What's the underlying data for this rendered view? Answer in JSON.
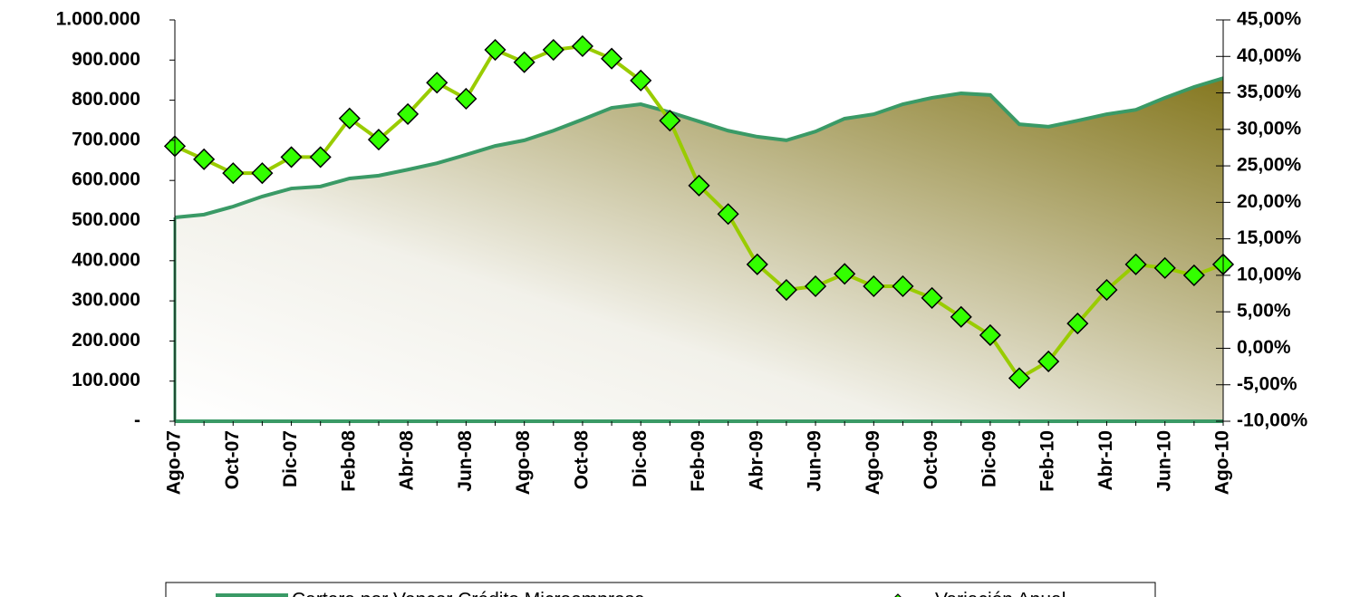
{
  "chart_data": {
    "type": "line",
    "categories": [
      "Ago-07",
      null,
      "Oct-07",
      null,
      "Dic-07",
      null,
      "Feb-08",
      null,
      "Abr-08",
      null,
      "Jun-08",
      null,
      "Ago-08",
      null,
      "Oct-08",
      null,
      "Dic-08",
      null,
      "Feb-09",
      null,
      "Abr-09",
      null,
      "Jun-09",
      null,
      "Ago-09",
      null,
      "Oct-09",
      null,
      "Dic-09",
      null,
      "Feb-10",
      null,
      "Abr-10",
      null,
      "Jun-10",
      null,
      "Ago-10"
    ],
    "series": [
      {
        "name": "Cartera por Vencer Crédito Microempresa",
        "type": "area",
        "color": "#3a9a66",
        "fill": "#857820",
        "values": [
          508000,
          515000,
          535000,
          560000,
          580000,
          585000,
          605000,
          612000,
          627000,
          643000,
          664000,
          686000,
          700000,
          724000,
          752000,
          781000,
          790000,
          770000,
          747000,
          724000,
          709000,
          700000,
          722000,
          754000,
          765000,
          790000,
          806000,
          817000,
          813000,
          740000,
          734000,
          749000,
          765000,
          776000,
          806000,
          833000,
          855000
        ]
      },
      {
        "name": "Variación Anual",
        "type": "line",
        "axis": "y2",
        "color": "#99cc00",
        "marker_color": "#33ff00",
        "values": [
          27.7,
          25.9,
          24.0,
          24.0,
          26.2,
          26.2,
          31.5,
          28.6,
          32.1,
          36.4,
          34.2,
          40.9,
          39.2,
          40.9,
          41.4,
          39.7,
          36.7,
          31.2,
          22.3,
          18.4,
          11.5,
          8.0,
          8.5,
          10.2,
          8.5,
          8.5,
          6.9,
          4.3,
          1.8,
          -4.1,
          -1.8,
          3.4,
          8.0,
          11.5,
          11.0,
          10.0,
          11.5
        ]
      }
    ],
    "ylim": [
      0,
      1000000
    ],
    "yticks": [
      {
        "value": 0,
        "label": "-"
      },
      {
        "value": 100000,
        "label": "100.000"
      },
      {
        "value": 200000,
        "label": "200.000"
      },
      {
        "value": 300000,
        "label": "300.000"
      },
      {
        "value": 400000,
        "label": "400.000"
      },
      {
        "value": 500000,
        "label": "500.000"
      },
      {
        "value": 600000,
        "label": "600.000"
      },
      {
        "value": 700000,
        "label": "700.000"
      },
      {
        "value": 800000,
        "label": "800.000"
      },
      {
        "value": 900000,
        "label": "900.000"
      },
      {
        "value": 1000000,
        "label": "1.000.000"
      }
    ],
    "y2lim": [
      -10,
      45
    ],
    "y2ticks": [
      {
        "value": -10,
        "label": "-10,00%"
      },
      {
        "value": -5,
        "label": "-5,00%"
      },
      {
        "value": 0,
        "label": "0,00%"
      },
      {
        "value": 5,
        "label": "5,00%"
      },
      {
        "value": 10,
        "label": "10,00%"
      },
      {
        "value": 15,
        "label": "15,00%"
      },
      {
        "value": 20,
        "label": "20,00%"
      },
      {
        "value": 25,
        "label": "25,00%"
      },
      {
        "value": 30,
        "label": "30,00%"
      },
      {
        "value": 35,
        "label": "35,00%"
      },
      {
        "value": 40,
        "label": "40,00%"
      },
      {
        "value": 45,
        "label": "45,00%"
      }
    ],
    "legend": "bottom"
  }
}
